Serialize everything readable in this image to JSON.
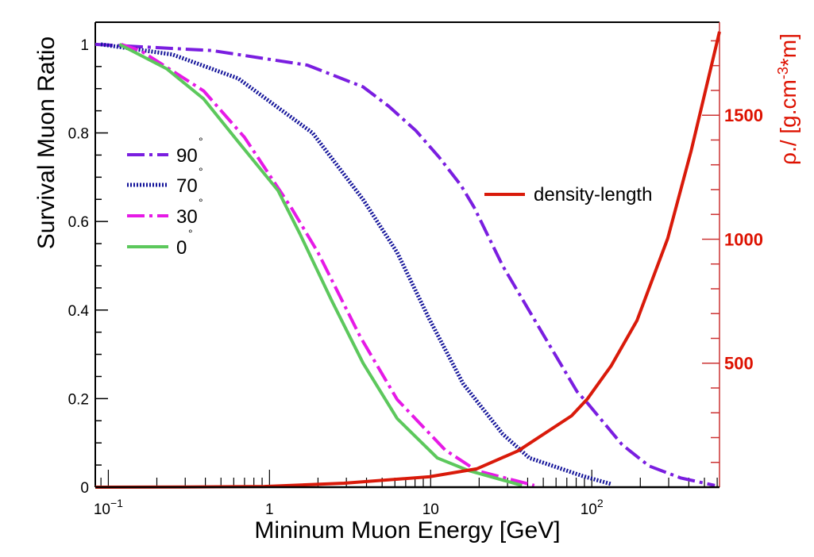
{
  "chart_data": {
    "type": "line",
    "xlabel": "Mininum Muon Energy [GeV]",
    "ylabel": "Survival Muon Ratio",
    "y2label": {
      "main": "ρ./ [g.cm",
      "sup": "-3",
      "end": "*m]"
    },
    "xscale": "log",
    "xlim": [
      0.083,
      620
    ],
    "ylim": [
      0,
      1.05
    ],
    "y2lim": [
      0,
      1875
    ],
    "grid": false,
    "x_ticks": [
      {
        "value": 0.1,
        "base": "10",
        "exp": "−1"
      },
      {
        "value": 1,
        "base": "1",
        "exp": ""
      },
      {
        "value": 10,
        "base": "10",
        "exp": ""
      },
      {
        "value": 100,
        "base": "10",
        "exp": "2"
      }
    ],
    "y_ticks": [
      {
        "value": 0,
        "label": "0"
      },
      {
        "value": 0.2,
        "label": "0.2"
      },
      {
        "value": 0.4,
        "label": "0.4"
      },
      {
        "value": 0.6,
        "label": "0.6"
      },
      {
        "value": 0.8,
        "label": "0.8"
      },
      {
        "value": 1,
        "label": "1"
      }
    ],
    "y2_ticks": [
      {
        "value": 500,
        "label": "500"
      },
      {
        "value": 1000,
        "label": "1000"
      },
      {
        "value": 1500,
        "label": "1500"
      }
    ],
    "legend_placement": "left",
    "series": [
      {
        "name": "90",
        "sup": "°",
        "axis": "left",
        "color": "#7a1ee0",
        "style": "dash-dot",
        "x": [
          0.083,
          0.44,
          1.72,
          3.81,
          5.5,
          8.1,
          11.3,
          15.4,
          18.6,
          28,
          49,
          81,
          94,
          154,
          226,
          355,
          580
        ],
        "y": [
          1,
          0.986,
          0.953,
          0.904,
          0.86,
          0.805,
          0.745,
          0.682,
          0.632,
          0.5,
          0.35,
          0.216,
          0.19,
          0.096,
          0.048,
          0.021,
          0.004
        ]
      },
      {
        "name": "70",
        "sup": "°",
        "axis": "left",
        "color": "#14149a",
        "style": "dotted",
        "x": [
          0.09,
          0.25,
          0.64,
          1.85,
          3.8,
          6.2,
          9.8,
          15.9,
          28,
          41,
          88,
          132
        ],
        "y": [
          1,
          0.977,
          0.923,
          0.8,
          0.65,
          0.53,
          0.38,
          0.234,
          0.12,
          0.066,
          0.025,
          0.007
        ]
      },
      {
        "name": "30",
        "sup": "°",
        "axis": "left",
        "color": "#e61ae6",
        "style": "dash-dot",
        "x": [
          0.12,
          0.16,
          0.39,
          0.7,
          1.37,
          2.0,
          3.65,
          6.2,
          12.3,
          19.3,
          44
        ],
        "y": [
          1,
          0.985,
          0.895,
          0.79,
          0.63,
          0.53,
          0.34,
          0.198,
          0.084,
          0.0375,
          0.004
        ]
      },
      {
        "name": "0",
        "sup": "°",
        "axis": "left",
        "color": "#5cc85c",
        "style": "solid",
        "x": [
          0.117,
          0.23,
          0.39,
          0.64,
          1.13,
          1.54,
          2.42,
          3.81,
          6.2,
          11,
          17.2,
          36.9
        ],
        "y": [
          1,
          0.945,
          0.877,
          0.78,
          0.67,
          0.573,
          0.423,
          0.28,
          0.155,
          0.066,
          0.0375,
          0.004
        ]
      },
      {
        "name": "density-length",
        "sup": "",
        "axis": "right",
        "color": "#d91a0a",
        "style": "solid",
        "x": [
          0.083,
          0.3,
          0.93,
          2.9,
          9.8,
          19.3,
          35,
          75,
          94,
          132,
          191,
          296,
          413,
          620
        ],
        "y": [
          0,
          1,
          3,
          16,
          42,
          74,
          147,
          288,
          356,
          490,
          673,
          1003,
          1355,
          1837
        ]
      }
    ]
  }
}
